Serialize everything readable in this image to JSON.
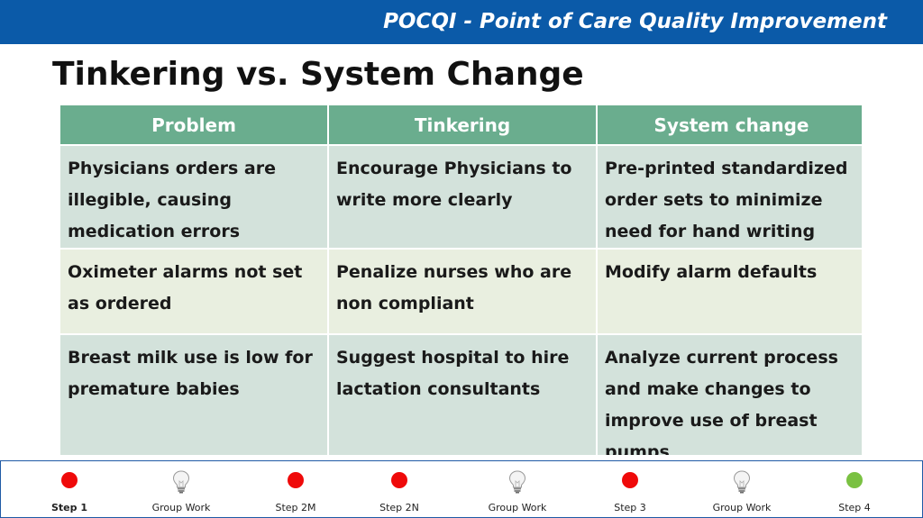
{
  "header": {
    "title": "POCQI - Point of Care Quality Improvement",
    "bar_color": "#0b5aa8"
  },
  "slide": {
    "title": "Tinkering vs. System Change"
  },
  "table": {
    "headers": [
      "Problem",
      "Tinkering",
      "System change"
    ],
    "rows": [
      [
        "Physicians orders are illegible, causing medication errors",
        "Encourage Physicians to write more clearly",
        "Pre-printed standardized order sets to minimize need for hand writing"
      ],
      [
        "Oximeter alarms not set as ordered",
        "Penalize nurses who are non compliant",
        "Modify alarm defaults"
      ],
      [
        "Breast milk use is low for premature babies",
        "Suggest hospital to hire lactation consultants",
        "Analyze current process and make changes to improve use of breast pumps"
      ]
    ],
    "header_color": "#6aad8e"
  },
  "footer": {
    "steps": [
      {
        "label": "Step 1",
        "marker": "red-dot",
        "active": true
      },
      {
        "label": "Group Work",
        "marker": "lightbulb-icon",
        "active": false
      },
      {
        "label": "Step 2M",
        "marker": "red-dot",
        "active": false
      },
      {
        "label": "Step 2N",
        "marker": "red-dot",
        "active": false
      },
      {
        "label": "Group Work",
        "marker": "lightbulb-icon",
        "active": false
      },
      {
        "label": "Step 3",
        "marker": "red-dot",
        "active": false
      },
      {
        "label": "Group Work",
        "marker": "lightbulb-icon",
        "active": false
      },
      {
        "label": "Step 4",
        "marker": "green-dot",
        "active": false
      }
    ],
    "colors": {
      "red": "#ef0a0a",
      "green": "#7ac142"
    }
  }
}
